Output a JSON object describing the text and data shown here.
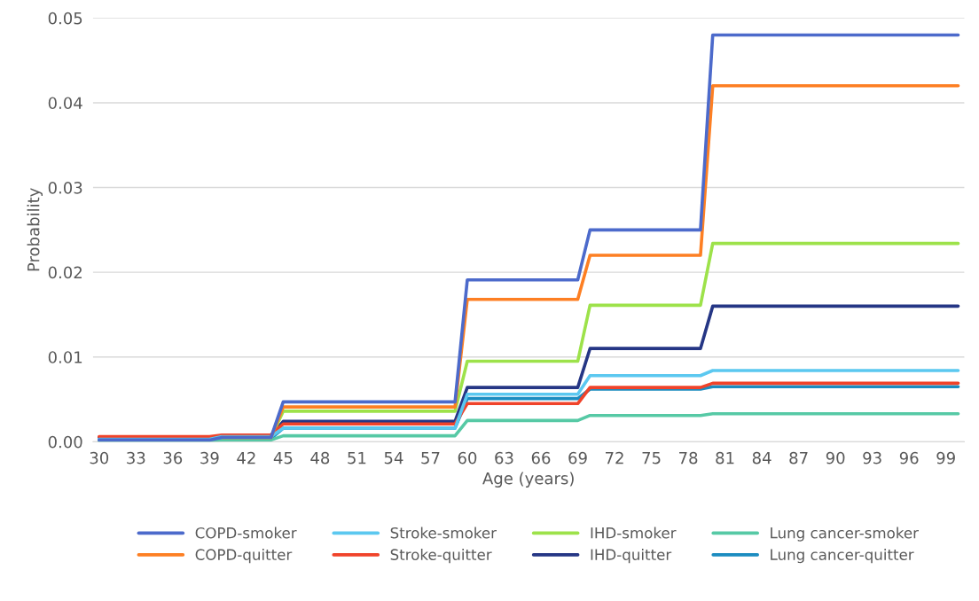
{
  "chart_data": {
    "type": "line",
    "xlabel": "Age (years)",
    "ylabel": "Probability",
    "x": [
      30,
      39,
      40,
      44,
      45,
      59,
      60,
      69,
      70,
      79,
      80,
      100
    ],
    "series": [
      {
        "name": "COPD-smoker",
        "color": "#4c6acb",
        "values": [
          0.0002,
          0.0002,
          0.0005,
          0.0005,
          0.0047,
          0.0047,
          0.0191,
          0.0191,
          0.025,
          0.025,
          0.048,
          0.048
        ]
      },
      {
        "name": "COPD-quitter",
        "color": "#fd7f23",
        "values": [
          null,
          null,
          0.0005,
          0.0005,
          0.0041,
          0.0041,
          0.0168,
          0.0168,
          0.022,
          0.022,
          0.042,
          0.042
        ]
      },
      {
        "name": "Stroke-smoker",
        "color": "#5bc8f0",
        "values": [
          0.0003,
          0.0003,
          0.0006,
          0.0006,
          0.0016,
          0.0016,
          0.0056,
          0.0056,
          0.0078,
          0.0078,
          0.0084,
          0.0084
        ]
      },
      {
        "name": "Stroke-quitter",
        "color": "#f0432a",
        "values": [
          0.0006,
          0.0006,
          0.0008,
          0.0008,
          0.0021,
          0.0021,
          0.0045,
          0.0045,
          0.0064,
          0.0064,
          0.0069,
          0.0069
        ]
      },
      {
        "name": "IHD-smoker",
        "color": "#9de24a",
        "values": [
          null,
          null,
          0.0005,
          0.0005,
          0.0036,
          0.0036,
          0.0095,
          0.0095,
          0.0161,
          0.0161,
          0.0234,
          0.0234
        ]
      },
      {
        "name": "IHD-quitter",
        "color": "#253685",
        "values": [
          0.0005,
          0.0005,
          0.0007,
          0.0007,
          0.0024,
          0.0024,
          0.0064,
          0.0064,
          0.011,
          0.011,
          0.016,
          0.016
        ]
      },
      {
        "name": "Lung cancer-smoker",
        "color": "#56c9a5",
        "values": [
          0.0001,
          0.0001,
          0.0002,
          0.0002,
          0.0007,
          0.0007,
          0.0025,
          0.0025,
          0.0031,
          0.0031,
          0.0033,
          0.0033
        ]
      },
      {
        "name": "Lung cancer-quitter",
        "color": "#1b8cc0",
        "values": [
          0.0002,
          0.0002,
          0.0004,
          0.0004,
          0.0016,
          0.0016,
          0.0051,
          0.0051,
          0.0062,
          0.0062,
          0.0065,
          0.0065
        ]
      }
    ],
    "xlim": [
      29.5,
      100.5
    ],
    "xticks": [
      30,
      33,
      36,
      39,
      42,
      45,
      48,
      51,
      54,
      57,
      60,
      63,
      66,
      69,
      72,
      75,
      78,
      81,
      84,
      87,
      90,
      93,
      96,
      99
    ],
    "ylim": [
      0,
      0.05
    ],
    "yticks": [
      {
        "value": 0,
        "label": "0.00"
      },
      {
        "value": 0.01,
        "label": "0.01"
      },
      {
        "value": 0.02,
        "label": "0.02"
      },
      {
        "value": 0.03,
        "label": "0.03"
      },
      {
        "value": 0.04,
        "label": "0.04"
      },
      {
        "value": 0.05,
        "label": "0.05"
      }
    ],
    "grid": "y",
    "legend": "bottom",
    "marker": "none",
    "line_style": "solid"
  }
}
